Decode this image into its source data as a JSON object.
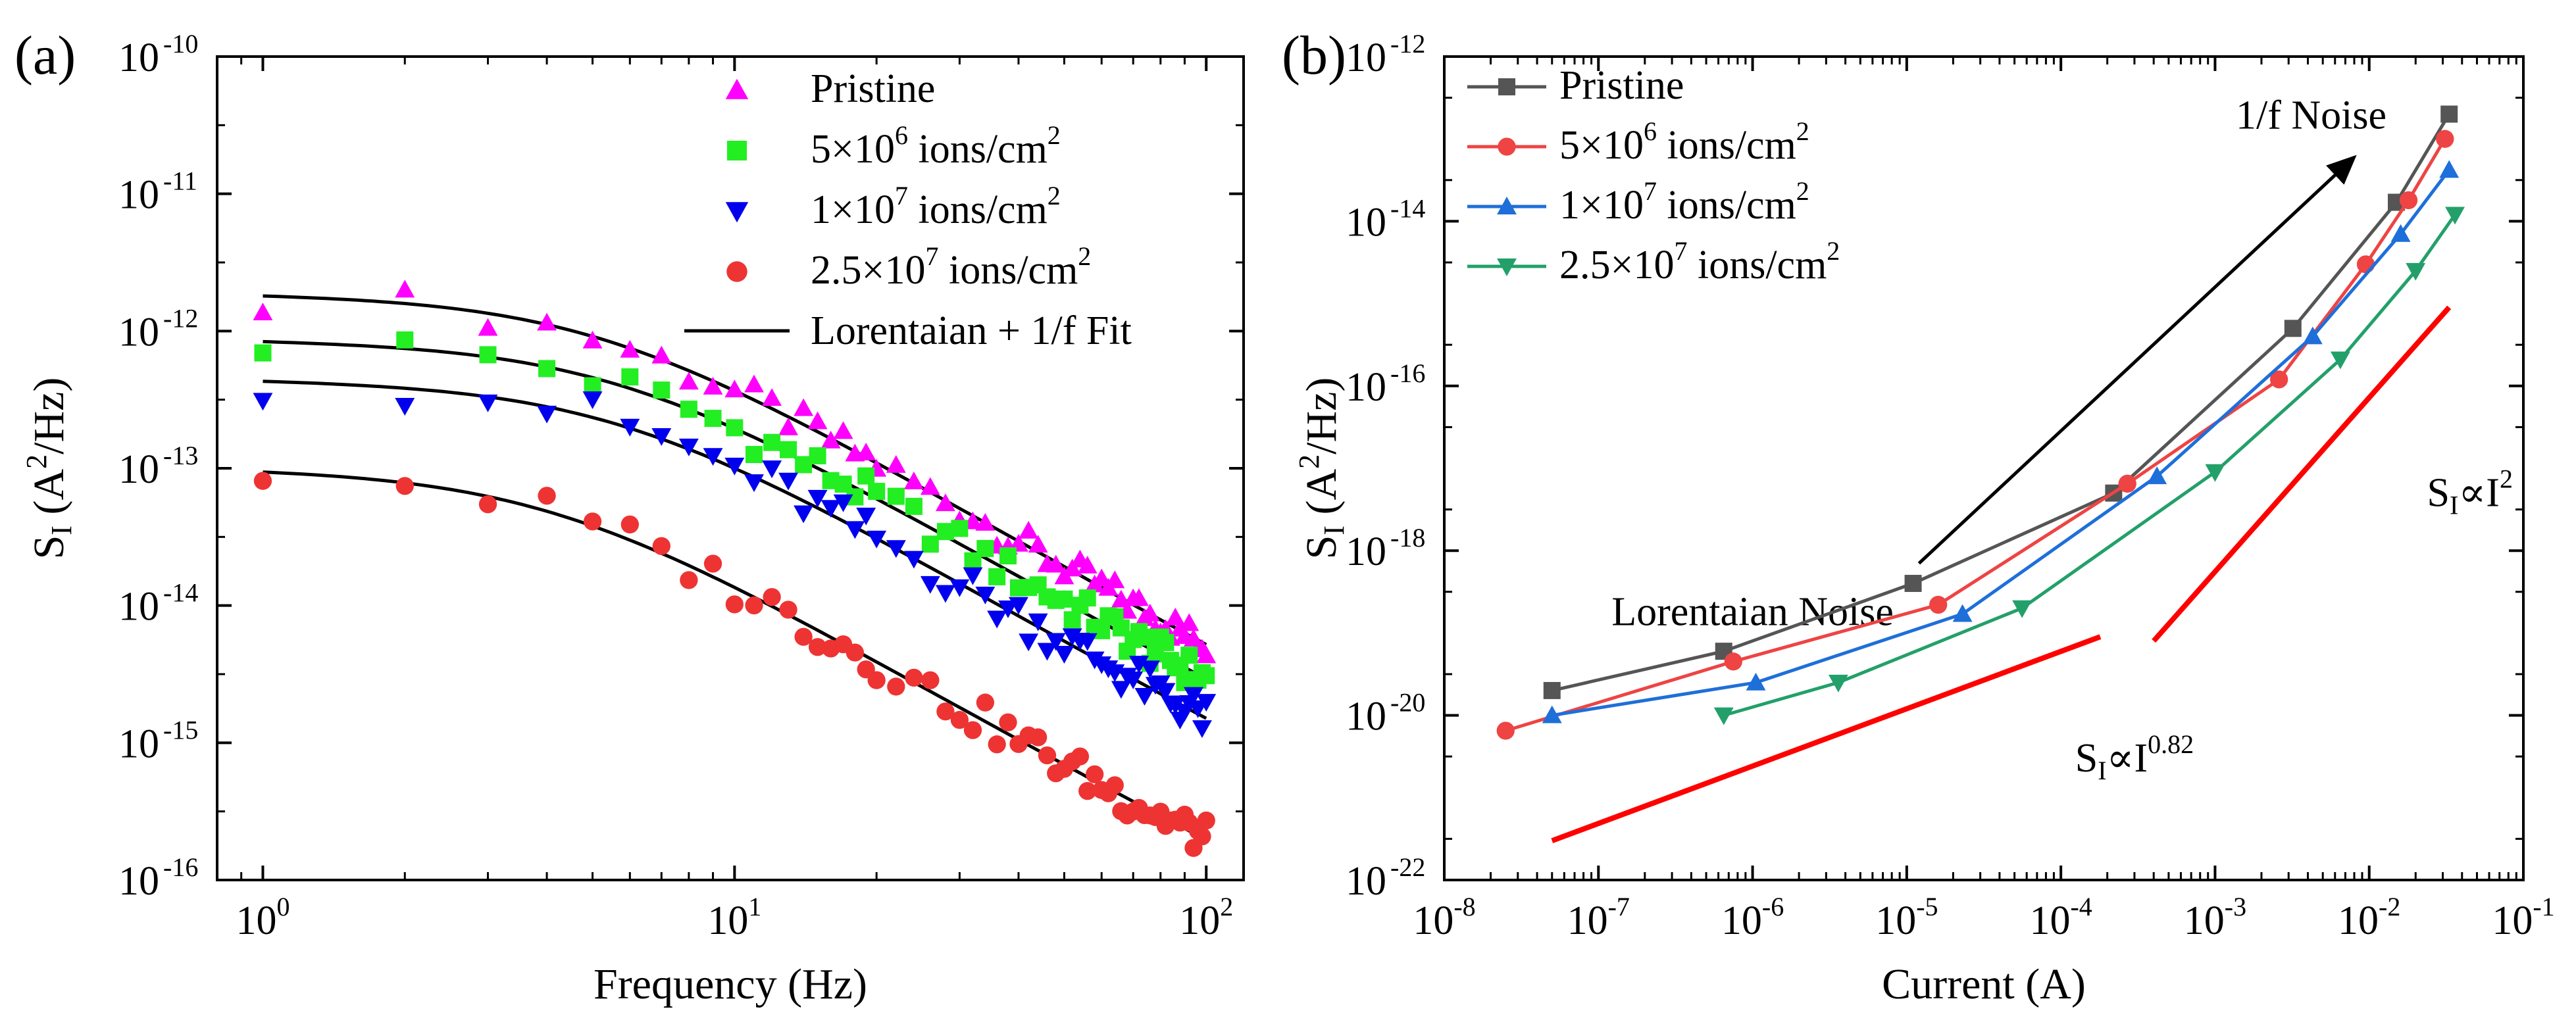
{
  "colors": {
    "magenta": "#ff00ff",
    "green": "#22ee22",
    "blue": "#0000ee",
    "red": "#ee3333",
    "grey": "#555555",
    "redline": "#ee4444",
    "blueline": "#1e6fd9",
    "teal": "#23a06a",
    "fitline": "#000000",
    "slope": "#ff0000"
  },
  "chart_data": [
    {
      "panel_label": "(a)",
      "type": "scatter",
      "xlabel": "Frequency (Hz)",
      "ylabel_main": "S",
      "ylabel_sub": "I",
      "ylabel_rest": " (A",
      "ylabel_sup": "2",
      "ylabel_end": "/Hz)",
      "xscale": "log",
      "yscale": "log",
      "xlim": [
        0.8,
        120
      ],
      "ylim": [
        1e-16,
        1e-10
      ],
      "xticks": [
        {
          "value": 1,
          "base": "10",
          "exp": "0"
        },
        {
          "value": 10,
          "base": "10",
          "exp": "1"
        },
        {
          "value": 100,
          "base": "10",
          "exp": "2"
        }
      ],
      "yticks": [
        {
          "value": 1e-16,
          "base": "10",
          "exp": "-16"
        },
        {
          "value": 1e-15,
          "base": "10",
          "exp": "-15"
        },
        {
          "value": 1e-14,
          "base": "10",
          "exp": "-14"
        },
        {
          "value": 1e-13,
          "base": "10",
          "exp": "-13"
        },
        {
          "value": 1e-12,
          "base": "10",
          "exp": "-12"
        },
        {
          "value": 1e-11,
          "base": "10",
          "exp": "-11"
        },
        {
          "value": 1e-10,
          "base": "10",
          "exp": "-10"
        }
      ],
      "series": [
        {
          "name": "Pristine",
          "marker": "triangle-up",
          "color_key": "magenta",
          "amp": 1.8e-12,
          "fc": 5.0,
          "noise_key": 0.12,
          "k": 7e-14
        },
        {
          "name": "5×10^6 ions/cm^2",
          "label_base": "5×10",
          "label_exp": "6",
          "label_rest": " ions/cm",
          "label_sup": "2",
          "marker": "square",
          "color_key": "green",
          "amp": 8.2e-13,
          "fc": 5.5,
          "noise_key": 0.13,
          "k": 4.4e-14
        },
        {
          "name": "1×10^7 ions/cm^2",
          "label_base": "1×10",
          "label_exp": "7",
          "label_rest": " ions/cm",
          "label_sup": "2",
          "marker": "triangle-down",
          "color_key": "blue",
          "amp": 4.2e-13,
          "fc": 5.5,
          "noise_key": 0.15,
          "k": 2.4e-14
        },
        {
          "name": "2.5×10^7 ions/cm^2",
          "label_base": "2.5×10",
          "label_exp": "7",
          "label_rest": " ions/cm",
          "label_sup": "2",
          "marker": "circle",
          "color_key": "red",
          "amp": 9.5e-14,
          "fc": 4.0,
          "noise_key": 0.14,
          "k": 4.5e-15
        }
      ],
      "fit_label": "Lorentaian + 1/f Fit",
      "freq_points": [
        1,
        2,
        3,
        4,
        5,
        6,
        7,
        8,
        9,
        10,
        11,
        12,
        13,
        14,
        15,
        16,
        17,
        18,
        19,
        20,
        22,
        24,
        26,
        28,
        30,
        32,
        34,
        36,
        38,
        40,
        42,
        44,
        46,
        48,
        50,
        52,
        54,
        56,
        58,
        60,
        62,
        64,
        66,
        68,
        70,
        72,
        74,
        76,
        78,
        80,
        82,
        84,
        86,
        88,
        90,
        92,
        94,
        96,
        98,
        100
      ]
    },
    {
      "panel_label": "(b)",
      "type": "line",
      "xlabel": "Current (A)",
      "ylabel_main": "S",
      "ylabel_sub": "I",
      "ylabel_rest": " (A",
      "ylabel_sup": "2",
      "ylabel_end": "/Hz)",
      "xscale": "log",
      "yscale": "log",
      "xlim": [
        1e-08,
        0.1
      ],
      "ylim": [
        1e-22,
        1e-12
      ],
      "xticks": [
        {
          "value": 1e-08,
          "base": "10",
          "exp": "-8"
        },
        {
          "value": 1e-07,
          "base": "10",
          "exp": "-7"
        },
        {
          "value": 1e-06,
          "base": "10",
          "exp": "-6"
        },
        {
          "value": 1e-05,
          "base": "10",
          "exp": "-5"
        },
        {
          "value": 0.0001,
          "base": "10",
          "exp": "-4"
        },
        {
          "value": 0.001,
          "base": "10",
          "exp": "-3"
        },
        {
          "value": 0.01,
          "base": "10",
          "exp": "-2"
        },
        {
          "value": 0.1,
          "base": "10",
          "exp": "-1"
        }
      ],
      "yticks": [
        {
          "value": 1e-22,
          "base": "10",
          "exp": "-22"
        },
        {
          "value": 1e-20,
          "base": "10",
          "exp": "-20"
        },
        {
          "value": 1e-18,
          "base": "10",
          "exp": "-18"
        },
        {
          "value": 1e-16,
          "base": "10",
          "exp": "-16"
        },
        {
          "value": 1e-14,
          "base": "10",
          "exp": "-14"
        },
        {
          "value": 1e-12,
          "base": "10",
          "exp": "-12"
        }
      ],
      "series": [
        {
          "name": "Pristine",
          "marker": "square",
          "color_key": "grey",
          "x": [
            5e-08,
            6.5e-07,
            1.1e-05,
            0.00022,
            0.0032,
            0.015,
            0.033
          ],
          "y": [
            2e-20,
            6e-20,
            4e-19,
            5e-18,
            5e-16,
            1.7e-14,
            2e-13
          ]
        },
        {
          "name": "5×10^6 ions/cm^2",
          "label_base": "5×10",
          "label_exp": "6",
          "label_rest": " ions/cm",
          "label_sup": "2",
          "marker": "circle",
          "color_key": "redline",
          "x": [
            2.5e-08,
            7.5e-07,
            1.6e-05,
            0.00027,
            0.0026,
            0.0095,
            0.018,
            0.031
          ],
          "y": [
            6.5e-21,
            4.5e-20,
            2.2e-19,
            6.5e-18,
            1.2e-16,
            3e-15,
            1.8e-14,
            1e-13
          ]
        },
        {
          "name": "1×10^7 ions/cm^2",
          "label_base": "1×10",
          "label_exp": "7",
          "label_rest": " ions/cm",
          "label_sup": "2",
          "marker": "triangle-up",
          "color_key": "blueline",
          "x": [
            5e-08,
            1.05e-06,
            2.3e-05,
            0.00042,
            0.0043,
            0.016,
            0.033
          ],
          "y": [
            1e-20,
            2.5e-20,
            1.7e-19,
            8e-18,
            4e-16,
            7e-15,
            4.2e-14
          ]
        },
        {
          "name": "2.5×10^7 ions/cm^2",
          "label_base": "2.5×10",
          "label_exp": "7",
          "label_rest": " ions/cm",
          "label_sup": "2",
          "marker": "triangle-down",
          "color_key": "teal",
          "x": [
            6.5e-07,
            3.6e-06,
            5.6e-05,
            0.001,
            0.0065,
            0.02,
            0.036
          ],
          "y": [
            1e-20,
            2.5e-20,
            2e-19,
            9e-18,
            2.1e-16,
            2.5e-15,
            1.2e-14
          ]
        }
      ],
      "annotations": {
        "arrow_text": "1/f Noise",
        "arrow_from": [
          1.2e-05,
          7e-19
        ],
        "arrow_to": [
          0.008,
          6e-14
        ],
        "arrow_text_pos": [
          0.03,
          1.6e-13
        ],
        "lorentz_text": "Lorentaian Noise",
        "lorentz_pos": [
          1e-06,
          1.8e-19
        ],
        "slope1_label": "S",
        "slope1_sub": "I",
        "slope1_mid": "∝I",
        "slope1_sup": "0.82",
        "slope1_line": [
          [
            5e-08,
            3e-22
          ],
          [
            0.00018,
            9e-20
          ]
        ],
        "slope1_pos": [
          0.0003,
          3e-21
        ],
        "slope2_label": "S",
        "slope2_sub": "I",
        "slope2_mid": "∝I",
        "slope2_sup": "2",
        "slope2_line": [
          [
            0.0004,
            8e-20
          ],
          [
            0.033,
            9e-16
          ]
        ],
        "slope2_pos": [
          0.045,
          5e-18
        ]
      }
    }
  ]
}
